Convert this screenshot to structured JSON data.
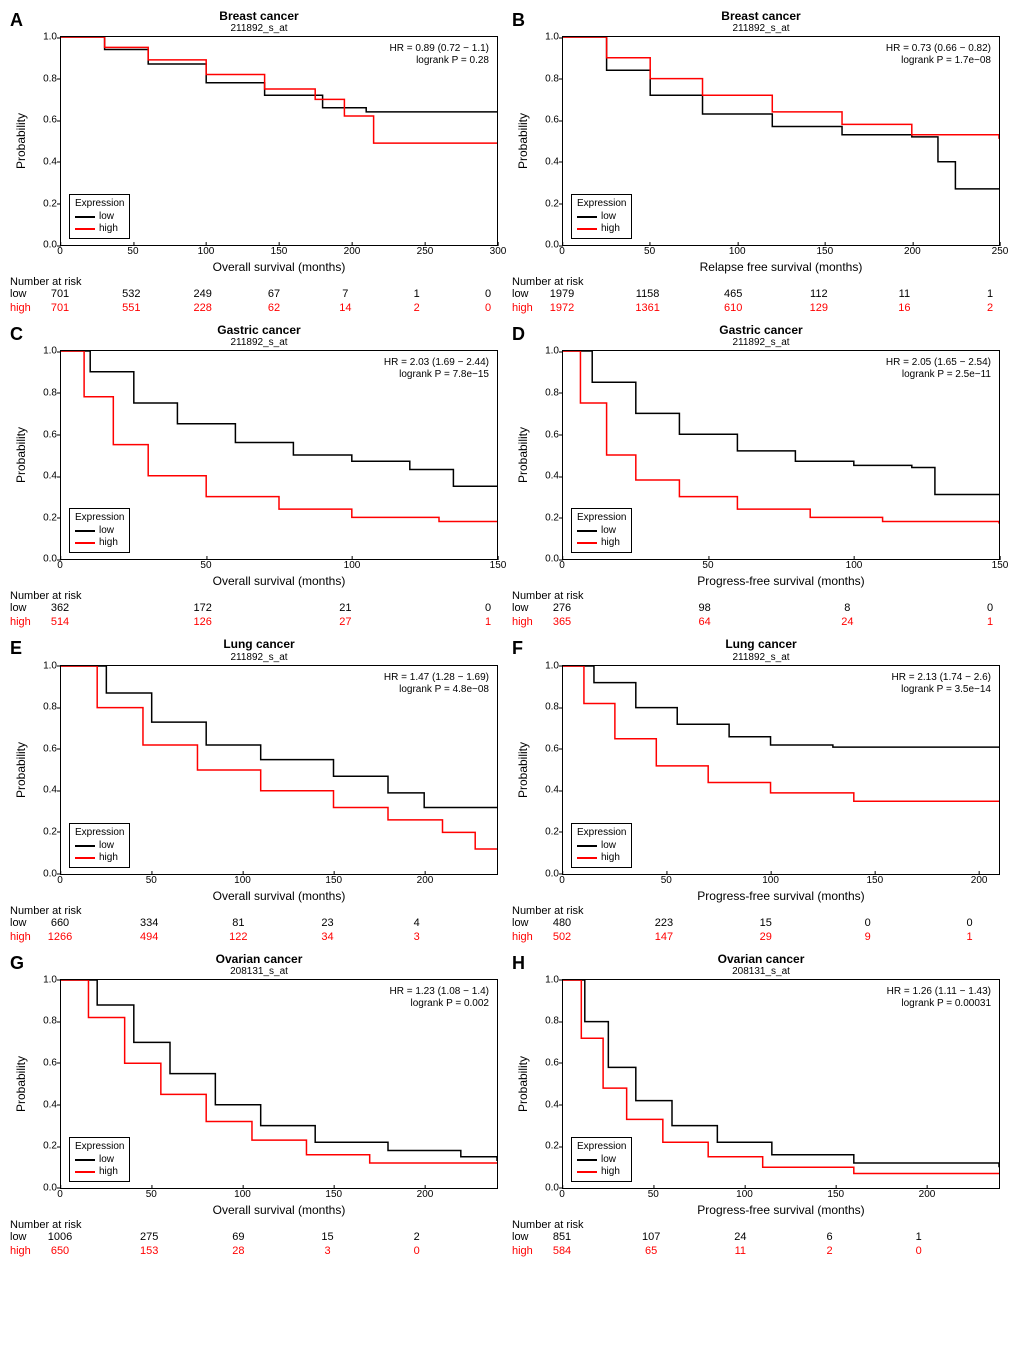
{
  "colors": {
    "low": "#000000",
    "high": "#ff0000",
    "axis": "#000000",
    "bg": "#ffffff"
  },
  "common": {
    "ylabel": "Probability",
    "yticks": [
      0.0,
      0.2,
      0.4,
      0.6,
      0.8,
      1.0
    ],
    "legend_title": "Expression",
    "legend_low": "low",
    "legend_high": "high",
    "risk_title": "Number at risk",
    "risk_low_label": "low",
    "risk_high_label": "high",
    "label_fontsize": 12,
    "tick_fontsize": 10,
    "line_width": 1.5
  },
  "panels": [
    {
      "letter": "A",
      "title1": "Breast cancer",
      "title2": "211892_s_at",
      "xlabel": "Overall survival (months)",
      "hr": "HR = 0.89 (0.72 − 1.1)",
      "p": "logrank P = 0.28",
      "xmax": 300,
      "xticks": [
        0,
        50,
        100,
        150,
        200,
        250,
        300
      ],
      "risk_x": [
        0,
        50,
        100,
        150,
        200,
        250,
        300
      ],
      "risk_low": [
        701,
        532,
        249,
        67,
        7,
        1,
        0
      ],
      "risk_high": [
        701,
        551,
        228,
        62,
        14,
        2,
        0
      ],
      "curve_low": [
        [
          0,
          1.0
        ],
        [
          30,
          0.94
        ],
        [
          60,
          0.87
        ],
        [
          100,
          0.78
        ],
        [
          140,
          0.72
        ],
        [
          180,
          0.66
        ],
        [
          210,
          0.64
        ],
        [
          300,
          0.64
        ]
      ],
      "curve_high": [
        [
          0,
          1.0
        ],
        [
          30,
          0.95
        ],
        [
          60,
          0.89
        ],
        [
          100,
          0.82
        ],
        [
          140,
          0.75
        ],
        [
          175,
          0.7
        ],
        [
          195,
          0.62
        ],
        [
          215,
          0.49
        ],
        [
          300,
          0.49
        ]
      ]
    },
    {
      "letter": "B",
      "title1": "Breast cancer",
      "title2": "211892_s_at",
      "xlabel": "Relapse free survival (months)",
      "hr": "HR = 0.73 (0.66 − 0.82)",
      "p": "logrank P = 1.7e−08",
      "xmax": 250,
      "xticks": [
        0,
        50,
        100,
        150,
        200,
        250
      ],
      "risk_x": [
        0,
        50,
        100,
        150,
        200,
        250
      ],
      "risk_low": [
        1979,
        1158,
        465,
        112,
        11,
        1
      ],
      "risk_high": [
        1972,
        1361,
        610,
        129,
        16,
        2
      ],
      "curve_low": [
        [
          0,
          1.0
        ],
        [
          25,
          0.84
        ],
        [
          50,
          0.72
        ],
        [
          80,
          0.63
        ],
        [
          120,
          0.57
        ],
        [
          160,
          0.53
        ],
        [
          200,
          0.52
        ],
        [
          215,
          0.4
        ],
        [
          225,
          0.27
        ],
        [
          250,
          0.27
        ]
      ],
      "curve_high": [
        [
          0,
          1.0
        ],
        [
          25,
          0.9
        ],
        [
          50,
          0.8
        ],
        [
          80,
          0.72
        ],
        [
          120,
          0.64
        ],
        [
          160,
          0.58
        ],
        [
          200,
          0.53
        ],
        [
          250,
          0.51
        ]
      ]
    },
    {
      "letter": "C",
      "title1": "Gastric cancer",
      "title2": "211892_s_at",
      "xlabel": "Overall survival (months)",
      "hr": "HR = 2.03 (1.69 − 2.44)",
      "p": "logrank P = 7.8e−15",
      "xmax": 150,
      "xticks": [
        0,
        50,
        100,
        150
      ],
      "risk_x": [
        0,
        50,
        100,
        150
      ],
      "risk_low": [
        362,
        172,
        21,
        0
      ],
      "risk_high": [
        514,
        126,
        27,
        1
      ],
      "curve_low": [
        [
          0,
          1.0
        ],
        [
          10,
          0.9
        ],
        [
          25,
          0.75
        ],
        [
          40,
          0.65
        ],
        [
          60,
          0.56
        ],
        [
          80,
          0.5
        ],
        [
          100,
          0.47
        ],
        [
          120,
          0.43
        ],
        [
          135,
          0.35
        ],
        [
          150,
          0.35
        ]
      ],
      "curve_high": [
        [
          0,
          1.0
        ],
        [
          8,
          0.78
        ],
        [
          18,
          0.55
        ],
        [
          30,
          0.4
        ],
        [
          50,
          0.3
        ],
        [
          75,
          0.24
        ],
        [
          100,
          0.2
        ],
        [
          130,
          0.18
        ],
        [
          150,
          0.18
        ]
      ]
    },
    {
      "letter": "D",
      "title1": "Gastric cancer",
      "title2": "211892_s_at",
      "xlabel": "Progress-free survival (months)",
      "hr": "HR = 2.05 (1.65 − 2.54)",
      "p": "logrank P = 2.5e−11",
      "xmax": 150,
      "xticks": [
        0,
        50,
        100,
        150
      ],
      "risk_x": [
        0,
        50,
        100,
        150
      ],
      "risk_low": [
        276,
        98,
        8,
        0
      ],
      "risk_high": [
        365,
        64,
        24,
        1
      ],
      "curve_low": [
        [
          0,
          1.0
        ],
        [
          10,
          0.85
        ],
        [
          25,
          0.7
        ],
        [
          40,
          0.6
        ],
        [
          60,
          0.52
        ],
        [
          80,
          0.47
        ],
        [
          100,
          0.45
        ],
        [
          120,
          0.44
        ],
        [
          128,
          0.31
        ],
        [
          150,
          0.31
        ]
      ],
      "curve_high": [
        [
          0,
          1.0
        ],
        [
          6,
          0.75
        ],
        [
          15,
          0.5
        ],
        [
          25,
          0.38
        ],
        [
          40,
          0.3
        ],
        [
          60,
          0.24
        ],
        [
          85,
          0.2
        ],
        [
          110,
          0.18
        ],
        [
          150,
          0.17
        ]
      ]
    },
    {
      "letter": "E",
      "title1": "Lung cancer",
      "title2": "211892_s_at",
      "xlabel": "Overall survival (months)",
      "hr": "HR = 1.47 (1.28 − 1.69)",
      "p": "logrank P = 4.8e−08",
      "xmax": 240,
      "xticks": [
        0,
        50,
        100,
        150,
        200
      ],
      "risk_x": [
        0,
        50,
        100,
        150,
        200
      ],
      "risk_low": [
        660,
        334,
        81,
        23,
        4
      ],
      "risk_high": [
        1266,
        494,
        122,
        34,
        3
      ],
      "curve_low": [
        [
          0,
          1.0
        ],
        [
          25,
          0.87
        ],
        [
          50,
          0.73
        ],
        [
          80,
          0.62
        ],
        [
          110,
          0.55
        ],
        [
          150,
          0.47
        ],
        [
          180,
          0.39
        ],
        [
          200,
          0.32
        ],
        [
          240,
          0.32
        ]
      ],
      "curve_high": [
        [
          0,
          1.0
        ],
        [
          20,
          0.8
        ],
        [
          45,
          0.62
        ],
        [
          75,
          0.5
        ],
        [
          110,
          0.4
        ],
        [
          150,
          0.32
        ],
        [
          180,
          0.26
        ],
        [
          210,
          0.2
        ],
        [
          228,
          0.12
        ],
        [
          240,
          0.12
        ]
      ]
    },
    {
      "letter": "F",
      "title1": "Lung cancer",
      "title2": "211892_s_at",
      "xlabel": "Progress-free survival (months)",
      "hr": "HR = 2.13 (1.74 − 2.6)",
      "p": "logrank P = 3.5e−14",
      "xmax": 210,
      "xticks": [
        0,
        50,
        100,
        150,
        200
      ],
      "risk_x": [
        0,
        50,
        100,
        150,
        200
      ],
      "risk_low": [
        480,
        223,
        15,
        0,
        0
      ],
      "risk_high": [
        502,
        147,
        29,
        9,
        1
      ],
      "curve_low": [
        [
          0,
          1.0
        ],
        [
          15,
          0.92
        ],
        [
          35,
          0.8
        ],
        [
          55,
          0.72
        ],
        [
          80,
          0.66
        ],
        [
          100,
          0.62
        ],
        [
          130,
          0.61
        ],
        [
          210,
          0.61
        ]
      ],
      "curve_high": [
        [
          0,
          1.0
        ],
        [
          10,
          0.82
        ],
        [
          25,
          0.65
        ],
        [
          45,
          0.52
        ],
        [
          70,
          0.44
        ],
        [
          100,
          0.39
        ],
        [
          140,
          0.35
        ],
        [
          210,
          0.35
        ]
      ]
    },
    {
      "letter": "G",
      "title1": "Ovarian cancer",
      "title2": "208131_s_at",
      "xlabel": "Overall survival (months)",
      "hr": "HR = 1.23 (1.08 − 1.4)",
      "p": "logrank P = 0.002",
      "xmax": 240,
      "xticks": [
        0,
        50,
        100,
        150,
        200
      ],
      "risk_x": [
        0,
        50,
        100,
        150,
        200
      ],
      "risk_low": [
        1006,
        275,
        69,
        15,
        2
      ],
      "risk_high": [
        650,
        153,
        28,
        3,
        0
      ],
      "curve_low": [
        [
          0,
          1.0
        ],
        [
          20,
          0.88
        ],
        [
          40,
          0.7
        ],
        [
          60,
          0.55
        ],
        [
          85,
          0.4
        ],
        [
          110,
          0.3
        ],
        [
          140,
          0.22
        ],
        [
          180,
          0.18
        ],
        [
          220,
          0.15
        ],
        [
          240,
          0.13
        ]
      ],
      "curve_high": [
        [
          0,
          1.0
        ],
        [
          15,
          0.82
        ],
        [
          35,
          0.6
        ],
        [
          55,
          0.45
        ],
        [
          80,
          0.32
        ],
        [
          105,
          0.23
        ],
        [
          135,
          0.16
        ],
        [
          170,
          0.12
        ],
        [
          240,
          0.12
        ]
      ]
    },
    {
      "letter": "H",
      "title1": "Ovarian cancer",
      "title2": "208131_s_at",
      "xlabel": "Progress-free survival (months)",
      "hr": "HR = 1.26 (1.11 − 1.43)",
      "p": "logrank P = 0.00031",
      "xmax": 240,
      "xticks": [
        0,
        50,
        100,
        150,
        200
      ],
      "risk_x": [
        0,
        50,
        100,
        150,
        200
      ],
      "risk_low": [
        851,
        107,
        24,
        6,
        1
      ],
      "risk_high": [
        584,
        65,
        11,
        2,
        0
      ],
      "curve_low": [
        [
          0,
          1.0
        ],
        [
          12,
          0.8
        ],
        [
          25,
          0.58
        ],
        [
          40,
          0.42
        ],
        [
          60,
          0.3
        ],
        [
          85,
          0.22
        ],
        [
          115,
          0.16
        ],
        [
          160,
          0.12
        ],
        [
          240,
          0.1
        ]
      ],
      "curve_high": [
        [
          0,
          1.0
        ],
        [
          10,
          0.72
        ],
        [
          22,
          0.48
        ],
        [
          35,
          0.33
        ],
        [
          55,
          0.22
        ],
        [
          80,
          0.15
        ],
        [
          110,
          0.1
        ],
        [
          160,
          0.07
        ],
        [
          240,
          0.07
        ]
      ]
    }
  ]
}
